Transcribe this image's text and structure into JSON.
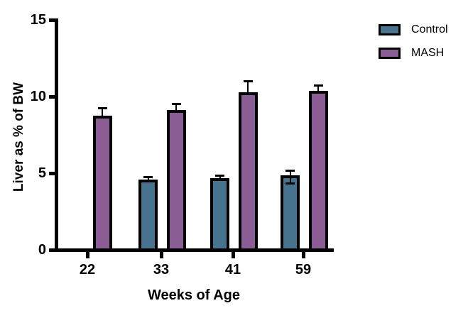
{
  "chart_data": {
    "type": "bar",
    "title": "",
    "xlabel": "Weeks of Age",
    "ylabel": "Liver as % of BW",
    "categories": [
      "22",
      "33",
      "41",
      "59"
    ],
    "series": [
      {
        "name": "Control",
        "color": "#47738e",
        "values": [
          null,
          4.5,
          4.6,
          4.75
        ],
        "errors_up": [
          null,
          0.25,
          0.25,
          0.45
        ],
        "errors_down": [
          null,
          0,
          0,
          0.45
        ]
      },
      {
        "name": "MASH",
        "color": "#8a5d94",
        "values": [
          8.65,
          9.05,
          10.2,
          10.3
        ],
        "errors_up": [
          0.6,
          0.5,
          0.8,
          0.45
        ],
        "errors_down": [
          0,
          0,
          0,
          0
        ]
      }
    ],
    "ylim": [
      0,
      15
    ],
    "yticks": [
      0,
      5,
      10,
      15
    ],
    "legend_position": "top-right",
    "grid": false,
    "axis_color": "#000000",
    "error_bar_color": "#000000"
  }
}
